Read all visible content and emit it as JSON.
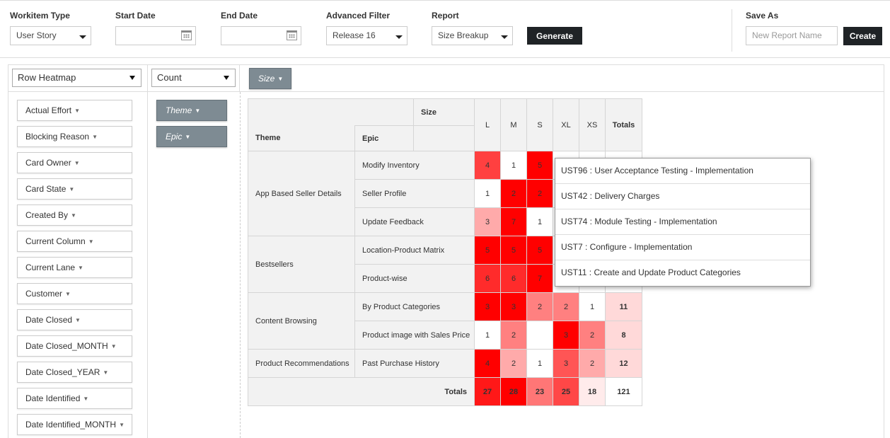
{
  "filters": {
    "workitem_type": {
      "label": "Workitem Type",
      "value": "User Story"
    },
    "start_date": {
      "label": "Start Date",
      "value": ""
    },
    "end_date": {
      "label": "End Date",
      "value": ""
    },
    "advanced_filter": {
      "label": "Advanced Filter",
      "value": "Release 16"
    },
    "report": {
      "label": "Report",
      "value": "Size Breakup"
    },
    "generate_label": "Generate",
    "save_as": {
      "label": "Save As",
      "placeholder": "New Report Name",
      "create_label": "Create"
    }
  },
  "renderer": "Row Heatmap",
  "aggregator": "Count",
  "col_attr": "Size",
  "row_attrs": [
    "Theme",
    "Epic"
  ],
  "attributes": [
    "Actual Effort",
    "Blocking Reason",
    "Card Owner",
    "Card State",
    "Created By",
    "Current Column",
    "Current Lane",
    "Customer",
    "Date Closed",
    "Date Closed_MONTH",
    "Date Closed_YEAR",
    "Date Identified",
    "Date Identified_MONTH"
  ],
  "table": {
    "size_header": "Size",
    "theme_header": "Theme",
    "epic_header": "Epic",
    "columns": [
      "L",
      "M",
      "S",
      "XL",
      "XS",
      "Totals"
    ],
    "totals_label": "Totals",
    "groups": [
      {
        "theme": "App Based Seller Details",
        "rows": [
          {
            "epic": "Modify Inventory",
            "values": [
              "4",
              "1",
              "5",
              "",
              "",
              ""
            ]
          },
          {
            "epic": "Seller Profile",
            "values": [
              "1",
              "2",
              "2",
              "",
              "",
              ""
            ]
          },
          {
            "epic": "Update Feedback",
            "values": [
              "3",
              "7",
              "1",
              "",
              "",
              ""
            ]
          }
        ]
      },
      {
        "theme": "Bestsellers",
        "rows": [
          {
            "epic": "Location-Product Matrix",
            "values": [
              "5",
              "5",
              "5",
              "",
              "",
              ""
            ]
          },
          {
            "epic": "Product-wise",
            "values": [
              "6",
              "6",
              "7",
              "",
              "",
              ""
            ]
          }
        ]
      },
      {
        "theme": "Content Browsing",
        "rows": [
          {
            "epic": "By Product Categories",
            "values": [
              "3",
              "3",
              "2",
              "2",
              "1",
              "11"
            ]
          },
          {
            "epic": "Product image with Sales Price",
            "values": [
              "1",
              "2",
              "",
              "3",
              "2",
              "8"
            ]
          }
        ]
      },
      {
        "theme": "Product Recommendations",
        "rows": [
          {
            "epic": "Past Purchase History",
            "values": [
              "4",
              "2",
              "1",
              "3",
              "2",
              "12"
            ]
          }
        ]
      }
    ],
    "totals": [
      "27",
      "28",
      "23",
      "25",
      "18",
      "121"
    ]
  },
  "popup_items": [
    "UST96 : User Acceptance Testing - Implementation",
    "UST42 : Delivery Charges",
    "UST74 : Module Testing - Implementation",
    "UST7 : Configure - Implementation",
    "UST11 : Create and Update Product Categories"
  ],
  "colors": {
    "heat_max": "#f60000",
    "button_dark": "#1f2326",
    "pill": "#7e8b93"
  }
}
